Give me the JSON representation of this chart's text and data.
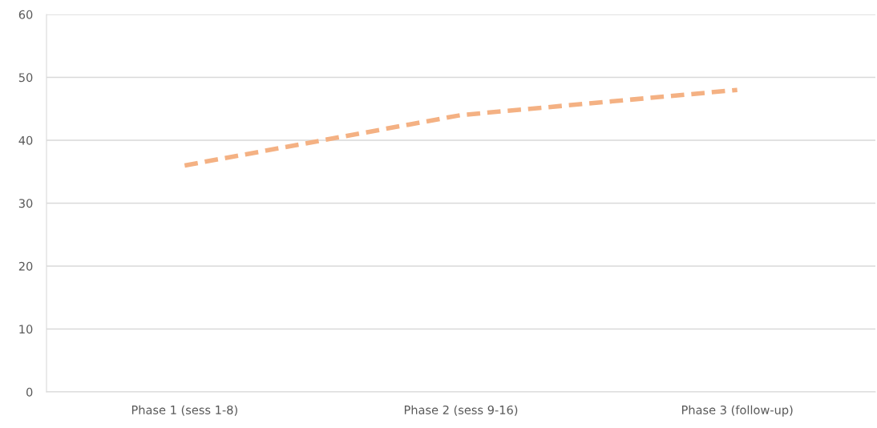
{
  "chart_data": {
    "type": "line",
    "categories": [
      "Phase 1 (sess 1-8)",
      "Phase 2 (sess 9-16)",
      "Phase 3 (follow-up)"
    ],
    "series": [
      {
        "color": "#f4b183",
        "values": [
          36,
          44,
          48
        ]
      }
    ],
    "ylim": [
      0,
      60
    ],
    "yticks": [
      0,
      10,
      20,
      30,
      40,
      50,
      60
    ],
    "grid": "y",
    "line_style": "dashed",
    "marker": "none",
    "legend": false
  }
}
